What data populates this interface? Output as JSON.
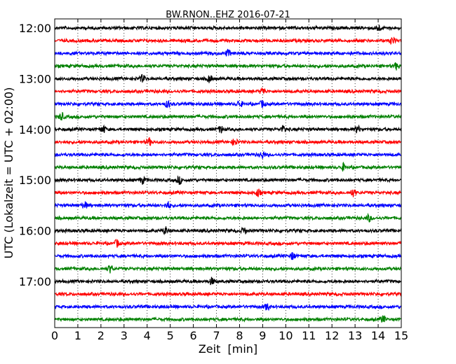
{
  "chart_data": {
    "type": "line",
    "title": "BW.RNON..EHZ 2016-07-21",
    "xlabel": "Zeit  [min]",
    "ylabel": "UTC (Lokalzeit = UTC + 02:00)",
    "xlim": [
      0,
      15
    ],
    "x_ticks": [
      "0",
      "1",
      "2",
      "3",
      "4",
      "5",
      "6",
      "7",
      "8",
      "9",
      "10",
      "11",
      "12",
      "13",
      "14",
      "15"
    ],
    "y_ticks": [
      "12:00",
      "13:00",
      "14:00",
      "15:00",
      "16:00",
      "17:00"
    ],
    "grid": "vertical-dotted",
    "trace_colors": [
      "#000000",
      "#ff0000",
      "#0000ff",
      "#008000"
    ],
    "traces": [
      {
        "start": "12:00",
        "events_min": [
          14.0
        ]
      },
      {
        "start": "12:15",
        "events_min": [
          14.6
        ]
      },
      {
        "start": "12:30",
        "events_min": [
          7.5
        ]
      },
      {
        "start": "12:45",
        "events_min": [
          14.8
        ]
      },
      {
        "start": "13:00",
        "events_min": [
          3.8,
          6.7
        ]
      },
      {
        "start": "13:15",
        "events_min": [
          9.0
        ]
      },
      {
        "start": "13:30",
        "events_min": [
          4.9,
          8.0,
          9.0
        ]
      },
      {
        "start": "13:45",
        "events_min": [
          0.3
        ]
      },
      {
        "start": "14:00",
        "events_min": [
          2.1,
          7.2,
          9.9,
          13.1
        ]
      },
      {
        "start": "14:15",
        "events_min": [
          4.1,
          7.8
        ]
      },
      {
        "start": "14:30",
        "events_min": [
          9.0
        ]
      },
      {
        "start": "14:45",
        "events_min": [
          12.5
        ]
      },
      {
        "start": "15:00",
        "events_min": [
          3.8,
          5.4
        ]
      },
      {
        "start": "15:15",
        "events_min": [
          8.8,
          12.9
        ]
      },
      {
        "start": "15:30",
        "events_min": [
          1.3,
          4.9
        ]
      },
      {
        "start": "15:45",
        "events_min": [
          13.6
        ]
      },
      {
        "start": "16:00",
        "events_min": [
          4.8,
          8.2
        ]
      },
      {
        "start": "16:15",
        "events_min": [
          2.7
        ]
      },
      {
        "start": "16:30",
        "events_min": [
          10.3
        ]
      },
      {
        "start": "16:45",
        "events_min": [
          2.4
        ]
      },
      {
        "start": "17:00",
        "events_min": [
          6.8
        ]
      },
      {
        "start": "17:15",
        "events_min": []
      },
      {
        "start": "17:30",
        "events_min": [
          9.2
        ]
      },
      {
        "start": "17:45",
        "events_min": [
          14.2
        ]
      }
    ]
  }
}
